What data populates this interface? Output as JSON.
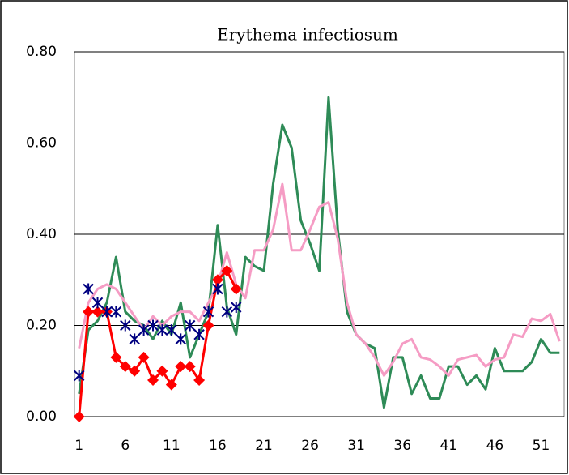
{
  "chart_data": {
    "type": "line",
    "title": "Erythema infectiosum",
    "categories": [
      "1",
      null,
      null,
      null,
      null,
      "6",
      null,
      null,
      null,
      null,
      "11",
      null,
      null,
      null,
      null,
      "16",
      null,
      null,
      null,
      null,
      "21",
      null,
      null,
      null,
      null,
      "26",
      null,
      null,
      null,
      null,
      "31",
      null,
      null,
      null,
      null,
      "36",
      null,
      null,
      null,
      null,
      "41",
      null,
      null,
      null,
      null,
      "46",
      null,
      null,
      null,
      null,
      "51",
      null,
      null
    ],
    "series": [
      {
        "color": "#2e8b57",
        "marker": "none",
        "values": [
          0.05,
          0.19,
          0.21,
          0.25,
          0.35,
          0.23,
          0.21,
          0.2,
          0.17,
          0.21,
          0.18,
          0.25,
          0.13,
          0.18,
          0.23,
          0.42,
          0.24,
          0.18,
          0.35,
          0.33,
          0.32,
          0.51,
          0.64,
          0.59,
          0.43,
          0.38,
          0.32,
          0.7,
          0.41,
          0.23,
          0.18,
          0.16,
          0.15,
          0.02,
          0.13,
          0.13,
          0.05,
          0.09,
          0.04,
          0.04,
          0.11,
          0.11,
          0.07,
          0.09,
          0.06,
          0.15,
          0.1,
          0.1,
          0.1,
          0.12,
          0.17,
          0.14,
          0.14
        ]
      },
      {
        "color": "#f59cc4",
        "marker": "none",
        "values": [
          0.15,
          0.25,
          0.28,
          0.29,
          0.28,
          0.25,
          0.22,
          0.19,
          0.22,
          0.2,
          0.22,
          0.23,
          0.23,
          0.21,
          0.25,
          0.29,
          0.36,
          0.29,
          0.26,
          0.365,
          0.365,
          0.41,
          0.51,
          0.365,
          0.365,
          0.41,
          0.46,
          0.47,
          0.39,
          0.25,
          0.18,
          0.16,
          0.13,
          0.09,
          0.12,
          0.16,
          0.17,
          0.13,
          0.125,
          0.11,
          0.09,
          0.125,
          0.13,
          0.135,
          0.11,
          0.125,
          0.13,
          0.18,
          0.175,
          0.215,
          0.21,
          0.225,
          0.165
        ]
      },
      {
        "color": "#ff0000",
        "marker": "diamond",
        "values": [
          0,
          0.23,
          0.23,
          0.23,
          0.13,
          0.11,
          0.1,
          0.13,
          0.08,
          0.1,
          0.07,
          0.11,
          0.11,
          0.08,
          0.2,
          0.3,
          0.32,
          0.28,
          null,
          null,
          null,
          null,
          null,
          null,
          null,
          null,
          null,
          null,
          null,
          null,
          null,
          null,
          null,
          null,
          null,
          null,
          null,
          null,
          null,
          null,
          null,
          null,
          null,
          null,
          null,
          null,
          null,
          null,
          null,
          null,
          null,
          null,
          null
        ]
      },
      {
        "color": "#000080",
        "marker": "asterisk",
        "values": [
          0.09,
          0.28,
          0.25,
          0.23,
          0.23,
          0.2,
          0.17,
          0.19,
          0.2,
          0.19,
          0.19,
          0.17,
          0.2,
          0.18,
          0.23,
          0.28,
          0.23,
          0.24,
          null,
          null,
          null,
          null,
          null,
          null,
          null,
          null,
          null,
          null,
          null,
          null,
          null,
          null,
          null,
          null,
          null,
          null,
          null,
          null,
          null,
          null,
          null,
          null,
          null,
          null,
          null,
          null,
          null,
          null,
          null,
          null,
          null,
          null,
          null
        ]
      }
    ],
    "ylim": [
      0,
      0.8
    ],
    "yticks": [
      {
        "value": 0,
        "label": "0.00"
      },
      {
        "value": 0.2,
        "label": "0.20"
      },
      {
        "value": 0.4,
        "label": "0.40"
      },
      {
        "value": 0.6,
        "label": "0.60"
      },
      {
        "value": 0.8,
        "label": "0.80"
      }
    ],
    "grid": true
  }
}
